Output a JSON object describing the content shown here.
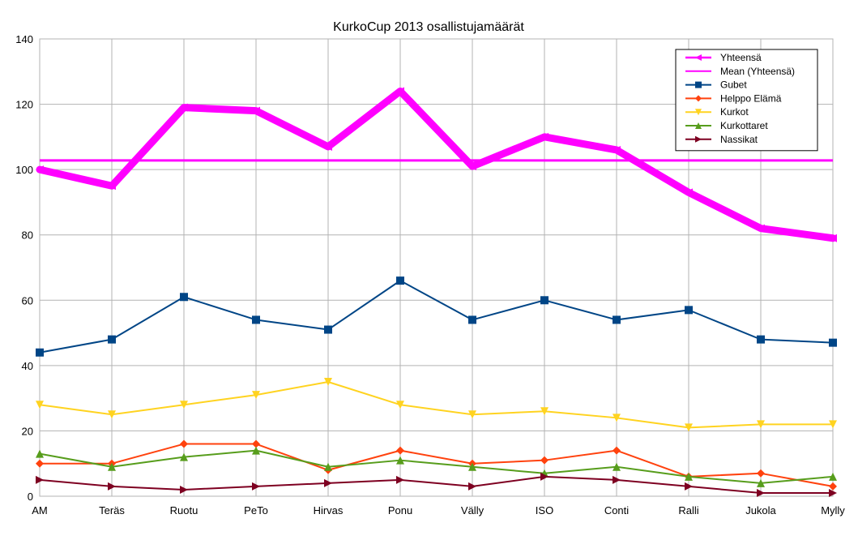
{
  "chart_data": {
    "type": "line",
    "title": "KurkoCup 2013 osallistujamäärät",
    "xlabel": "",
    "ylabel": "",
    "categories": [
      "AM",
      "Teräs",
      "Ruotu",
      "PeTo",
      "Hirvas",
      "Ponu",
      "Välly",
      "ISO",
      "Conti",
      "Ralli",
      "Jukola",
      "Mylly"
    ],
    "ylim": [
      0,
      140
    ],
    "yticks": [
      0,
      20,
      40,
      60,
      80,
      100,
      120,
      140
    ],
    "grid": true,
    "legend_position": "top-right",
    "series": [
      {
        "name": "Yhteensä",
        "color": "#ff00ff",
        "marker": "triangle-left",
        "values": [
          100,
          95,
          119,
          118,
          107,
          124,
          101,
          110,
          106,
          93,
          82,
          79
        ]
      },
      {
        "name": "Mean (Yhteensä)",
        "color": "#ff00ff",
        "marker": "none",
        "values": [
          102.8,
          102.8,
          102.8,
          102.8,
          102.8,
          102.8,
          102.8,
          102.8,
          102.8,
          102.8,
          102.8,
          102.8
        ]
      },
      {
        "name": "Gubet",
        "color": "#004586",
        "marker": "square",
        "values": [
          44,
          48,
          61,
          54,
          51,
          66,
          54,
          60,
          54,
          57,
          48,
          47
        ]
      },
      {
        "name": "Helppo Elämä",
        "color": "#ff420e",
        "marker": "diamond",
        "values": [
          10,
          10,
          16,
          16,
          8,
          14,
          10,
          11,
          14,
          6,
          7,
          3
        ]
      },
      {
        "name": "Kurkot",
        "color": "#ffd320",
        "marker": "triangle-down",
        "values": [
          28,
          25,
          28,
          31,
          35,
          28,
          25,
          26,
          24,
          21,
          22,
          22
        ]
      },
      {
        "name": "Kurkottaret",
        "color": "#579d1c",
        "marker": "triangle-up",
        "values": [
          13,
          9,
          12,
          14,
          9,
          11,
          9,
          7,
          9,
          6,
          4,
          6
        ]
      },
      {
        "name": "Nassikat",
        "color": "#7e0021",
        "marker": "triangle-right",
        "values": [
          5,
          3,
          2,
          3,
          4,
          5,
          3,
          6,
          5,
          3,
          1,
          1
        ]
      }
    ]
  }
}
